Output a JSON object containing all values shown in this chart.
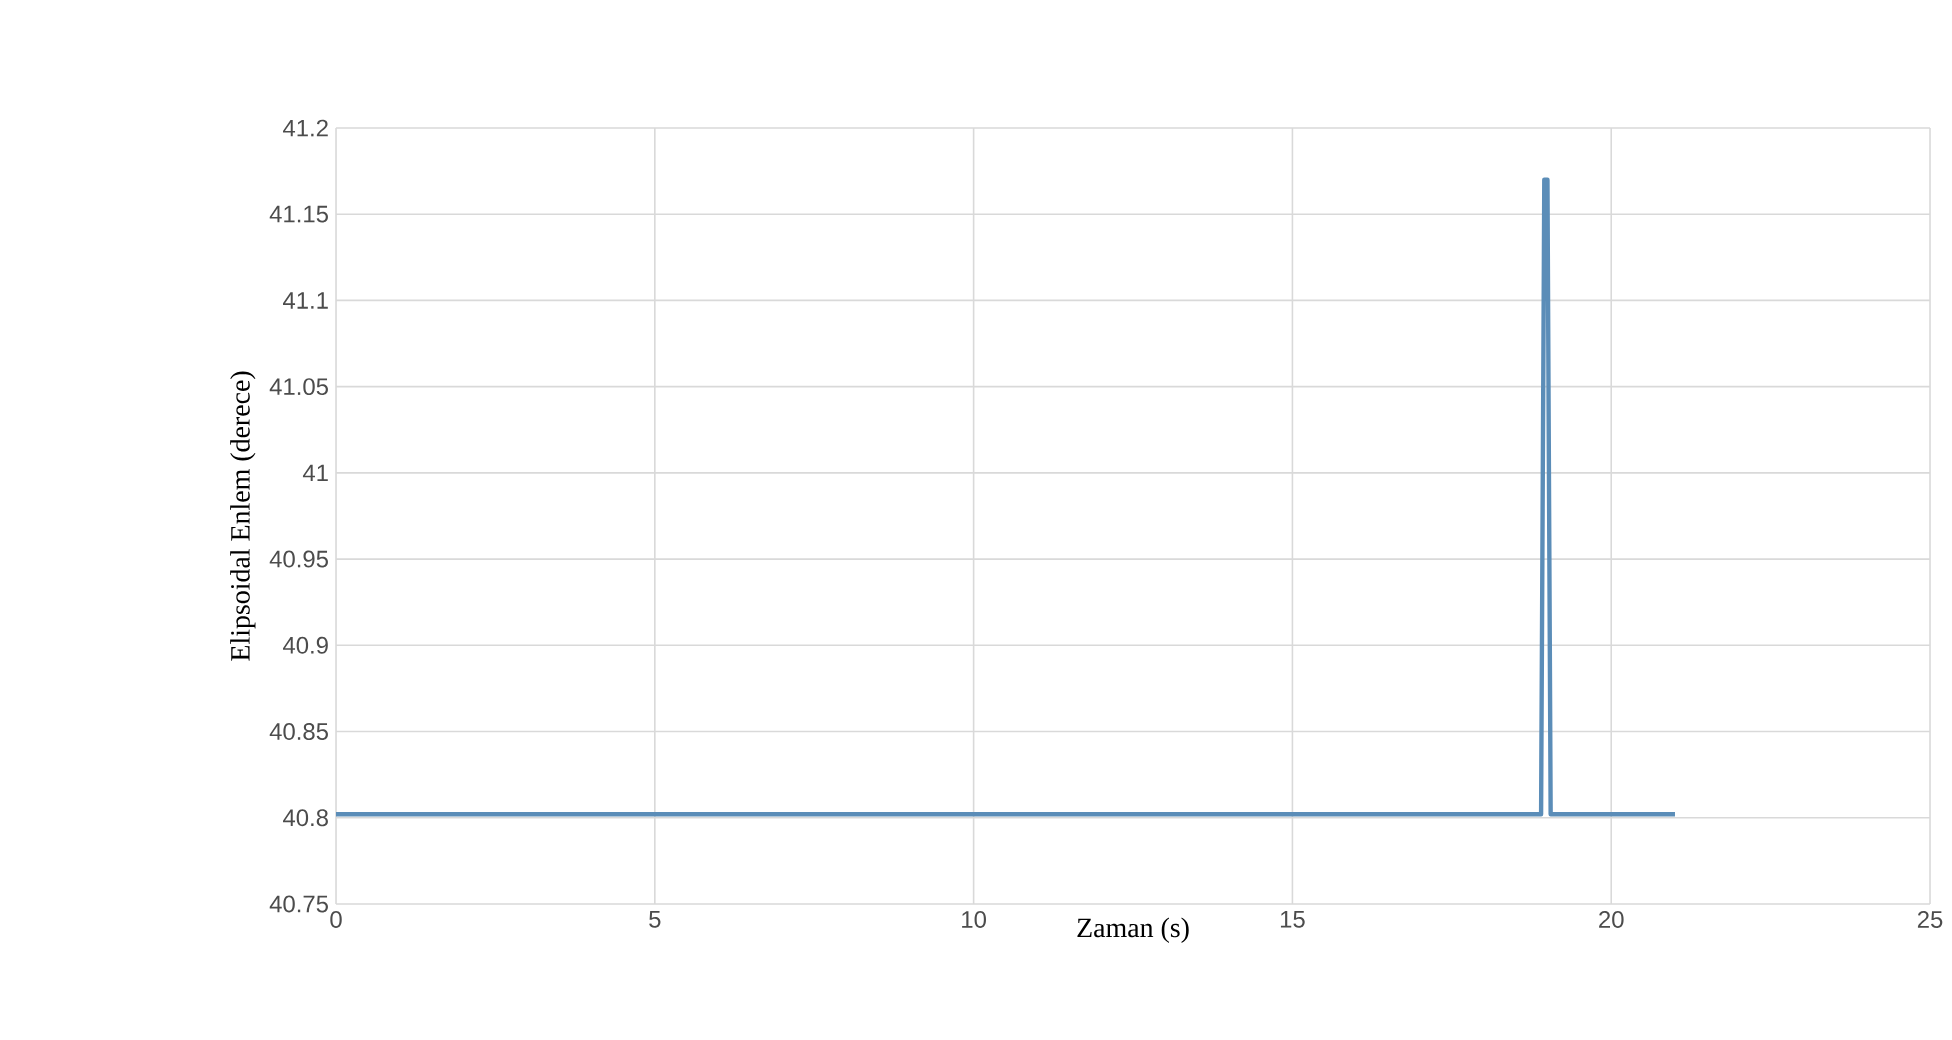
{
  "chart_data": {
    "type": "line",
    "xlabel": "Zaman (s)",
    "ylabel": "Elipsoidal Enlem (derece)",
    "series": [
      {
        "color": "#5b8db8",
        "x": [
          0,
          5,
          10,
          15,
          18.9,
          18.95,
          19.0,
          19.05,
          21
        ],
        "values": [
          40.802,
          40.802,
          40.802,
          40.802,
          40.802,
          41.17,
          41.17,
          40.802,
          40.802
        ]
      }
    ],
    "xlim": [
      0,
      25
    ],
    "xticks": [
      0,
      5,
      10,
      15,
      20,
      25
    ],
    "ylim": [
      40.75,
      41.2
    ],
    "yticks": [
      40.75,
      40.8,
      40.85,
      40.9,
      40.95,
      41,
      41.05,
      41.1,
      41.15,
      41.2
    ],
    "grid": true
  }
}
